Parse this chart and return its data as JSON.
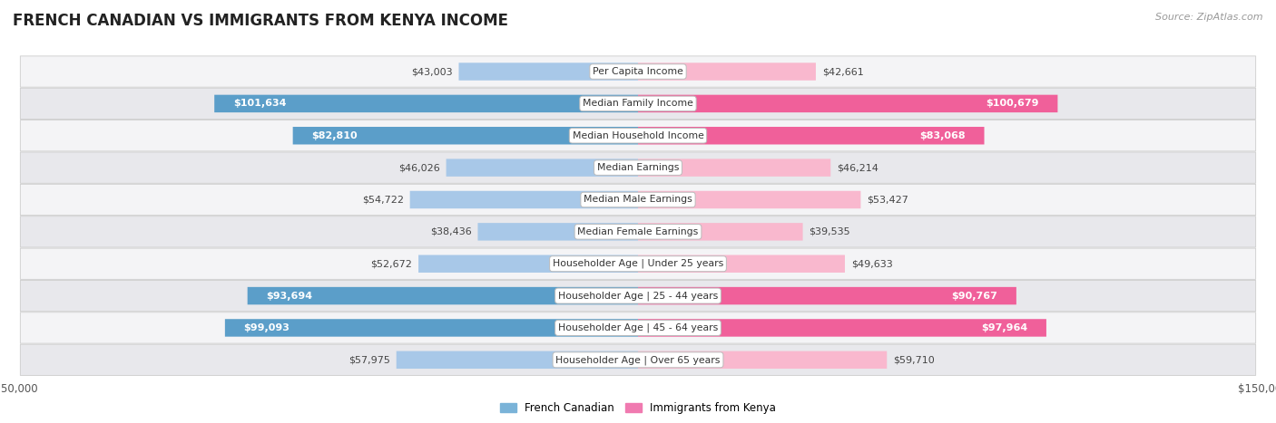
{
  "title": "FRENCH CANADIAN VS IMMIGRANTS FROM KENYA INCOME",
  "source": "Source: ZipAtlas.com",
  "categories": [
    "Per Capita Income",
    "Median Family Income",
    "Median Household Income",
    "Median Earnings",
    "Median Male Earnings",
    "Median Female Earnings",
    "Householder Age | Under 25 years",
    "Householder Age | 25 - 44 years",
    "Householder Age | 45 - 64 years",
    "Householder Age | Over 65 years"
  ],
  "french_canadian": [
    43003,
    101634,
    82810,
    46026,
    54722,
    38436,
    52672,
    93694,
    99093,
    57975
  ],
  "kenya": [
    42661,
    100679,
    83068,
    46214,
    53427,
    39535,
    49633,
    90767,
    97964,
    59710
  ],
  "french_canadian_labels": [
    "$43,003",
    "$101,634",
    "$82,810",
    "$46,026",
    "$54,722",
    "$38,436",
    "$52,672",
    "$93,694",
    "$99,093",
    "$57,975"
  ],
  "kenya_labels": [
    "$42,661",
    "$100,679",
    "$83,068",
    "$46,214",
    "$53,427",
    "$39,535",
    "$49,633",
    "$90,767",
    "$97,964",
    "$59,710"
  ],
  "max_val": 150000,
  "color_french_light": "#a8c8e8",
  "color_french_dark": "#5b9ec9",
  "color_kenya_light": "#f9b8ce",
  "color_kenya_dark": "#f0609a",
  "threshold": 60000,
  "bg_row_light": "#f4f4f6",
  "bg_row_dark": "#e8e8ec",
  "bar_height": 0.55,
  "label_fontsize": 8.0,
  "cat_fontsize": 7.8,
  "title_fontsize": 12,
  "legend_fontsize": 8.5,
  "legend_fc": "#7ab3d8",
  "legend_kc": "#f07ab0"
}
